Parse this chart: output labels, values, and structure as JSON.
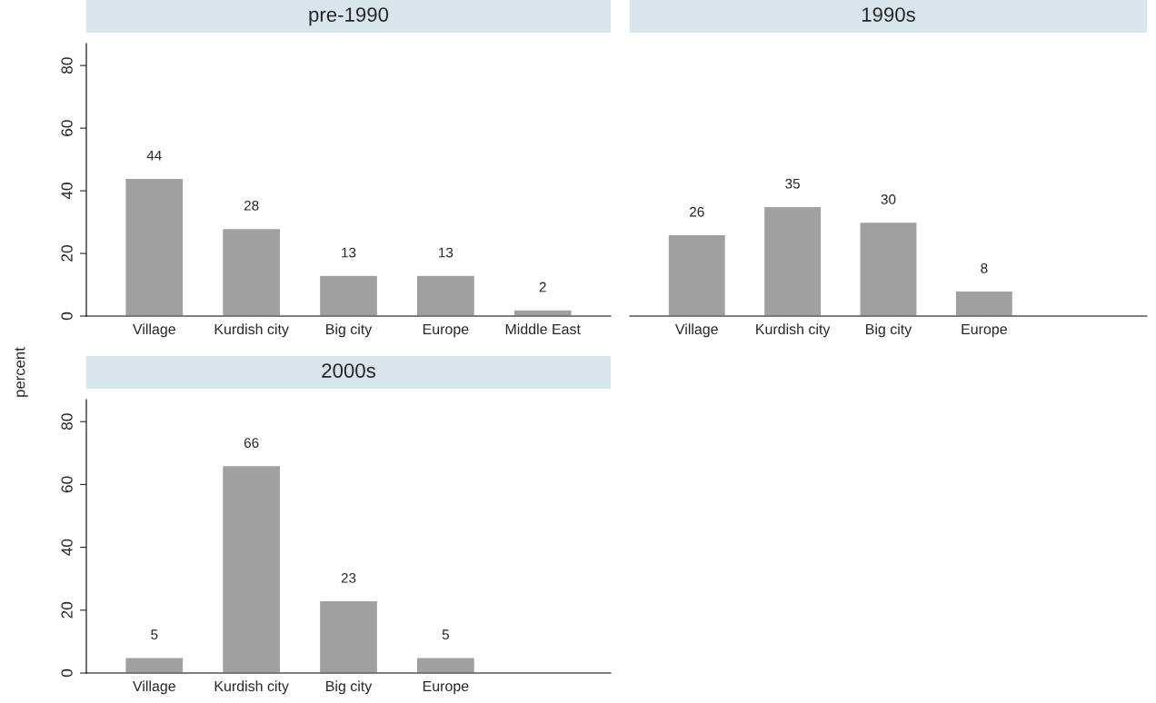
{
  "chart_data": [
    {
      "type": "bar",
      "title": "pre-1990",
      "ylabel": "percent",
      "categories": [
        "Village",
        "Kurdish city",
        "Big city",
        "Europe",
        "Middle East"
      ],
      "values": [
        44,
        28,
        13,
        13,
        2
      ],
      "color": "#a0a0a0",
      "ylim": [
        0,
        87
      ],
      "yticks": [
        0,
        20,
        40,
        60,
        80
      ],
      "data_labels": true,
      "grid": false,
      "legend": false
    },
    {
      "type": "bar",
      "title": "1990s",
      "categories": [
        "Village",
        "Kurdish city",
        "Big city",
        "Europe",
        null
      ],
      "values": [
        26,
        35,
        30,
        8,
        null
      ],
      "color": "#a0a0a0",
      "data_labels": true,
      "grid": false,
      "legend": false,
      "tick_labels": "x"
    },
    {
      "type": "bar",
      "title": "2000s",
      "categories": [
        "Village",
        "Kurdish city",
        "Big city",
        "Europe",
        null
      ],
      "values": [
        5,
        66,
        23,
        5,
        null
      ],
      "color": "#a0a0a0",
      "ylim": [
        0,
        87
      ],
      "yticks": [
        0,
        20,
        40,
        60,
        80
      ],
      "data_labels": true,
      "grid": false,
      "legend": false
    }
  ]
}
